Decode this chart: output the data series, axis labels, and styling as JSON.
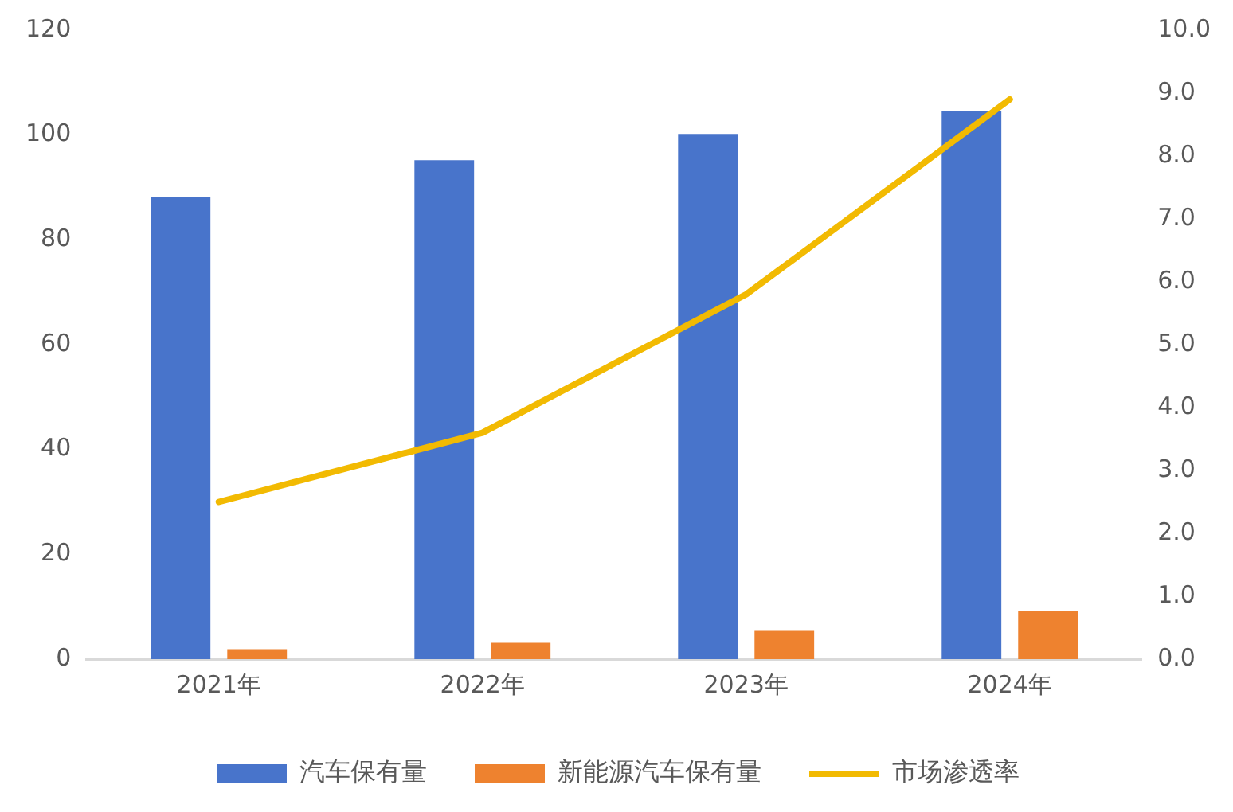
{
  "chart_data": {
    "type": "bar",
    "categories": [
      "2021年",
      "2022年",
      "2023年",
      "2024年"
    ],
    "series": [
      {
        "name": "汽车保有量",
        "color": "#4874cb",
        "values": [
          88.2,
          95.2,
          100.2,
          104.6
        ]
      },
      {
        "name": "新能源汽车保有量",
        "color": "#ee822f",
        "values": [
          1.9,
          3.1,
          5.4,
          9.2
        ]
      },
      {
        "name": "市场渗透率",
        "type": "line",
        "axis": "y2",
        "color": "#f2ba02",
        "values": [
          2.5,
          3.6,
          5.8,
          8.9
        ]
      }
    ],
    "ylim": [
      0,
      120
    ],
    "yticks": [
      0,
      20,
      40,
      60,
      80,
      100,
      120
    ],
    "y2lim": [
      0,
      10
    ],
    "y2ticks": [
      {
        "value": 0,
        "label": "0.0"
      },
      {
        "value": 1,
        "label": "1.0"
      },
      {
        "value": 2,
        "label": "2.0"
      },
      {
        "value": 3,
        "label": "3.0"
      },
      {
        "value": 4,
        "label": "4.0"
      },
      {
        "value": 5,
        "label": "5.0"
      },
      {
        "value": 6,
        "label": "6.0"
      },
      {
        "value": 7,
        "label": "7.0"
      },
      {
        "value": 8,
        "label": "8.0"
      },
      {
        "value": 9,
        "label": "9.0"
      },
      {
        "value": 10,
        "label": "10.0"
      }
    ],
    "grid": false,
    "legend": "bottom",
    "marker": "none",
    "line_style": "solid"
  }
}
